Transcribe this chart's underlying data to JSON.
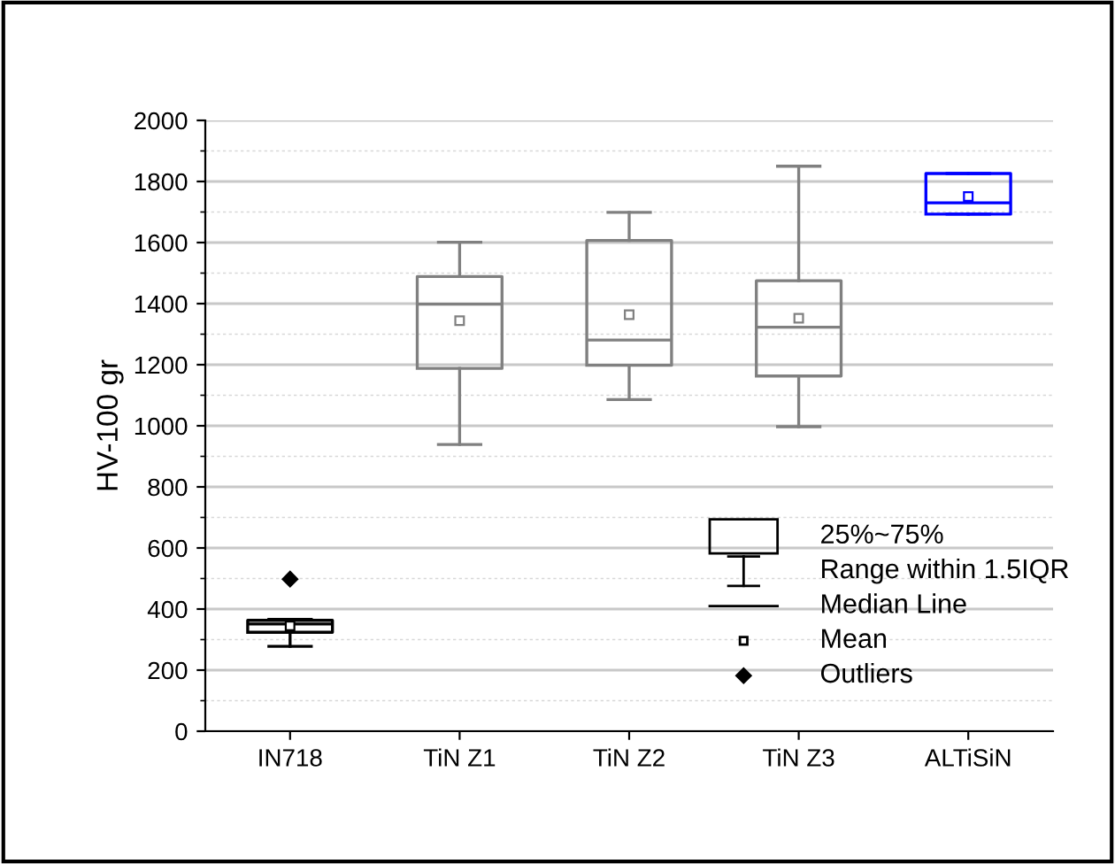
{
  "chart_data": {
    "type": "box",
    "ylabel": "HV-100 gr",
    "categories": [
      "IN718",
      "TiN Z1",
      "TiN Z2",
      "TiN Z3",
      "ALTiSiN"
    ],
    "colors": [
      "#000000",
      "#808080",
      "#808080",
      "#808080",
      "#0000ff"
    ],
    "boxes": [
      {
        "low": 278,
        "q1": 324,
        "median": 351,
        "q3": 363,
        "high": 366,
        "mean": 345,
        "outliers": [
          498
        ]
      },
      {
        "low": 939,
        "q1": 1188,
        "median": 1398,
        "q3": 1489,
        "high": 1601,
        "mean": 1344
      },
      {
        "low": 1086,
        "q1": 1198,
        "median": 1281,
        "q3": 1607,
        "high": 1699,
        "mean": 1364
      },
      {
        "low": 997,
        "q1": 1163,
        "median": 1323,
        "q3": 1475,
        "high": 1850,
        "mean": 1352
      },
      {
        "low": 1693,
        "q1": 1693,
        "median": 1730,
        "q3": 1826,
        "high": 1826,
        "mean": 1751
      }
    ],
    "ylim": [
      0,
      2000
    ],
    "yticks": [
      0,
      200,
      400,
      600,
      800,
      1000,
      1200,
      1400,
      1600,
      1800,
      2000
    ],
    "grid": "y",
    "annotations": [
      "25%~75%",
      "Range within 1.5IQR",
      "Median Line",
      "Mean",
      "Outliers"
    ]
  }
}
